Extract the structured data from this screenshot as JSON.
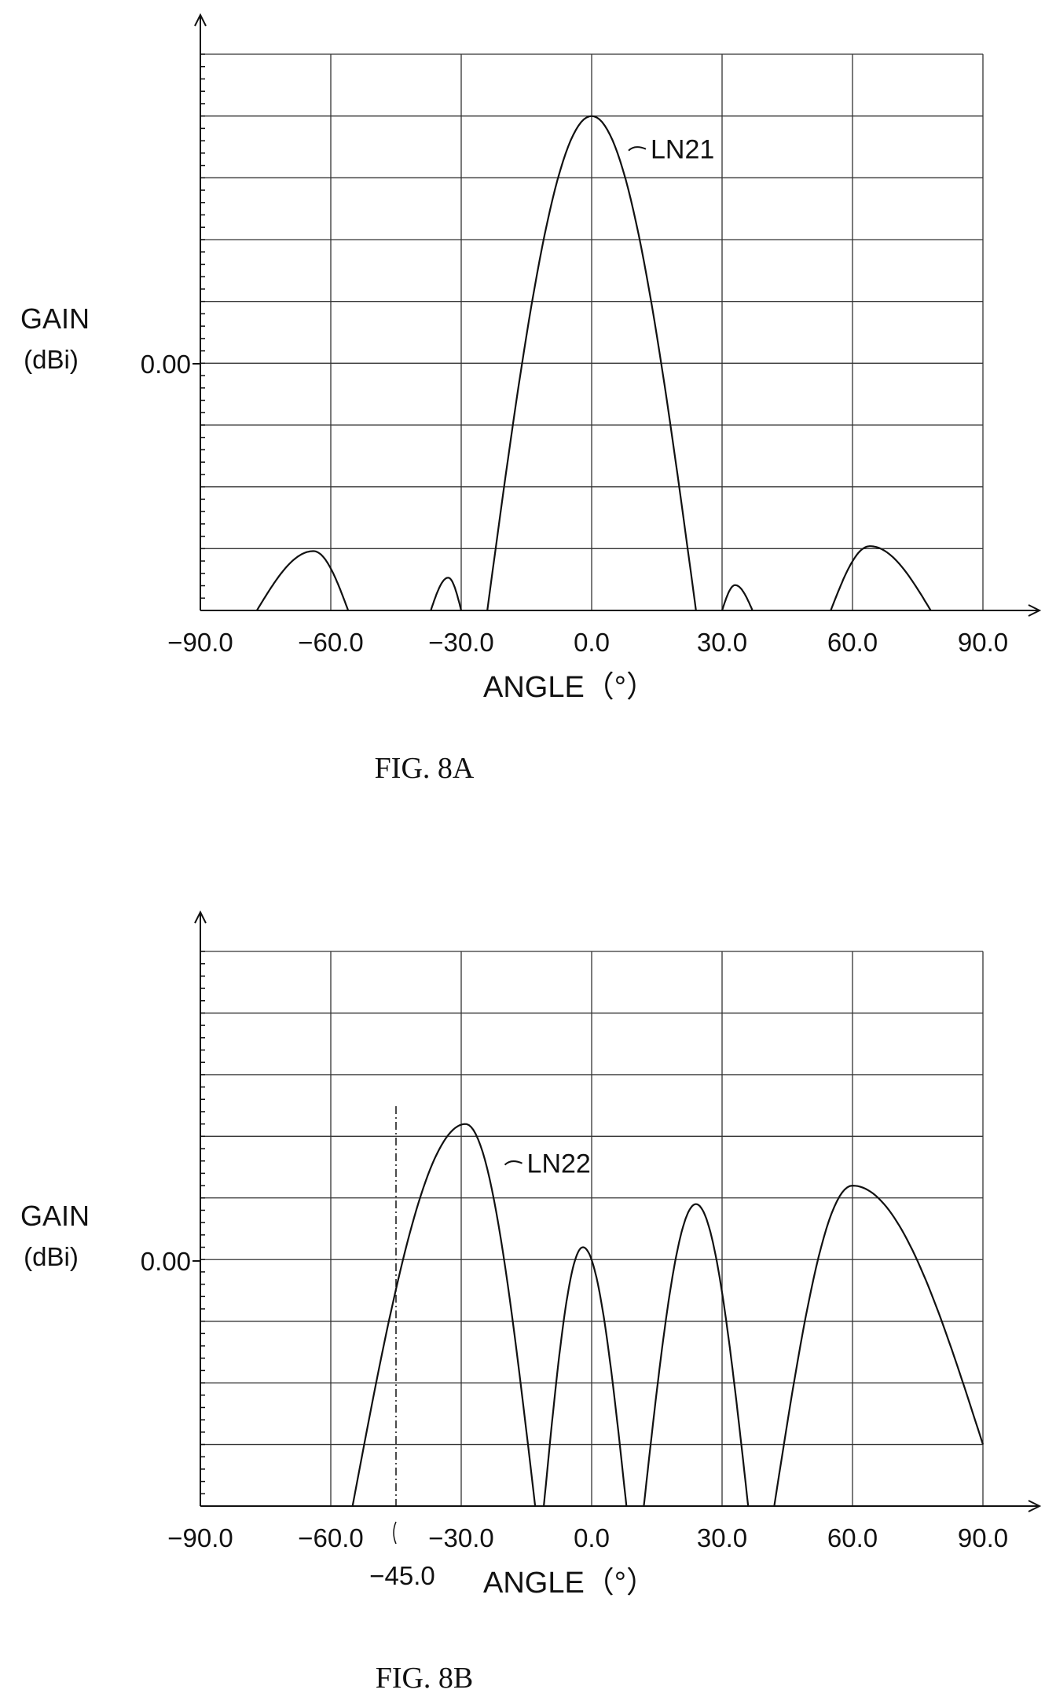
{
  "chart_data": [
    {
      "type": "line",
      "figure_caption": "FIG. 8A",
      "ylabel_line1": "GAIN",
      "ylabel_line2": "(dBi)",
      "y_tick_label": "0.00",
      "xlabel": "ANGLE (°)",
      "xlabel_display": "ANGLE（°）",
      "x_ticks": [
        -90,
        -60,
        -30,
        0,
        30,
        60,
        90
      ],
      "x_tick_labels": [
        "−90.0",
        "−60.0",
        "−30.0",
        "0.0",
        "30.0",
        "60.0",
        "90.0"
      ],
      "xlim": [
        -90,
        90
      ],
      "grid": true,
      "series": [
        {
          "name": "LN21",
          "lobes": [
            {
              "x_start": -77,
              "x_peak": -64,
              "x_end": -56,
              "peak": 0.96
            },
            {
              "x_start": -37,
              "x_peak": -33,
              "x_end": -30,
              "peak": 0.53
            },
            {
              "x_start": -24,
              "x_peak": 0,
              "x_end": 24,
              "peak": 8.0
            },
            {
              "x_start": 30,
              "x_peak": 33,
              "x_end": 37,
              "peak": 0.41
            },
            {
              "x_start": 55,
              "x_peak": 64,
              "x_end": 78,
              "peak": 1.04
            }
          ]
        }
      ]
    },
    {
      "type": "line",
      "figure_caption": "FIG. 8B",
      "ylabel_line1": "GAIN",
      "ylabel_line2": "(dBi)",
      "y_tick_label": "0.00",
      "xlabel": "ANGLE (°)",
      "xlabel_display": "ANGLE（°）",
      "x_ticks": [
        -90,
        -60,
        -30,
        0,
        30,
        60,
        90
      ],
      "x_tick_labels": [
        "−90.0",
        "−60.0",
        "−30.0",
        "0.0",
        "30.0",
        "60.0",
        "90.0"
      ],
      "xlim": [
        -90,
        90
      ],
      "grid": true,
      "annotation": {
        "x": -45,
        "label": "−45.0"
      },
      "series": [
        {
          "name": "LN22",
          "lobes": [
            {
              "x_start": -55,
              "x_peak": -29,
              "x_end": -13,
              "peak": 6.2
            },
            {
              "x_start": -11,
              "x_peak": -2,
              "x_end": 8,
              "peak": 4.2
            },
            {
              "x_start": 12,
              "x_peak": 24,
              "x_end": 36,
              "peak": 4.9
            },
            {
              "x_start": 42,
              "x_peak": 60,
              "x_end": 90,
              "peak": 5.2,
              "end_value": 1.0
            }
          ]
        }
      ]
    }
  ]
}
